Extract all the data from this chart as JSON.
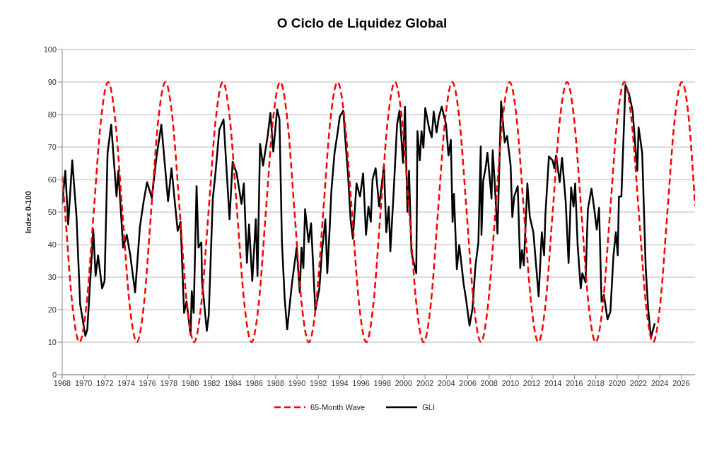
{
  "chart_data": {
    "type": "line",
    "title": "O Ciclo de Liquidez Global",
    "ylabel": "Index 0-100",
    "xlim": [
      1968,
      2027.3
    ],
    "xticks": [
      1968,
      1970,
      1972,
      1974,
      1976,
      1978,
      1980,
      1982,
      1984,
      1986,
      1988,
      1990,
      1992,
      1994,
      1996,
      1998,
      2000,
      2002,
      2004,
      2006,
      2008,
      2010,
      2012,
      2014,
      2016,
      2018,
      2020,
      2022,
      2024,
      2026
    ],
    "ylim": [
      0,
      100
    ],
    "yticks": [
      0,
      10,
      20,
      30,
      40,
      50,
      60,
      70,
      80,
      90,
      100
    ],
    "grid": "y",
    "legend": "bottom",
    "marker": "none",
    "series": [
      {
        "name": "65-Month Wave",
        "color": "#ff0000",
        "line_style": "dashed",
        "x": [
          1968.0,
          1968.27,
          1968.94,
          1969.61,
          1970.28,
          1970.95,
          1971.63,
          1972.3,
          1972.97,
          1973.64,
          1974.31,
          1974.99,
          1975.66,
          1976.33,
          1977.0,
          1977.67,
          1978.35,
          1979.02,
          1979.69,
          1980.36,
          1981.03,
          1981.71,
          1982.38,
          1983.05,
          1983.72,
          1984.39,
          1985.07,
          1985.74,
          1986.41,
          1987.08,
          1987.75,
          1988.43,
          1989.1,
          1989.77,
          1990.44,
          1991.11,
          1991.79,
          1992.46,
          1993.13,
          1993.8,
          1994.47,
          1995.15,
          1995.82,
          1996.49,
          1997.16,
          1997.83,
          1998.51,
          1999.18,
          1999.85,
          2000.52,
          2001.19,
          2001.87,
          2002.54,
          2003.21,
          2003.88,
          2004.55,
          2005.23,
          2005.9,
          2006.57,
          2007.24,
          2007.91,
          2008.59,
          2009.26,
          2009.93,
          2010.6,
          2011.27,
          2011.95,
          2012.62,
          2013.29,
          2013.96,
          2014.63,
          2015.31,
          2015.98,
          2016.65,
          2017.32,
          2017.99,
          2018.67,
          2019.34,
          2020.01,
          2020.68,
          2021.35,
          2022.03,
          2022.7,
          2023.37,
          2024.04,
          2024.71,
          2025.39,
          2026.06,
          2026.73,
          2027.3
        ],
        "values": [
          61,
          50,
          21.7,
          10,
          21.7,
          50,
          78.3,
          90,
          78.3,
          50,
          21.7,
          10,
          21.7,
          50,
          78.3,
          90,
          78.3,
          50,
          21.7,
          10,
          21.7,
          50,
          78.3,
          90,
          78.3,
          50,
          21.7,
          10,
          21.7,
          50,
          78.3,
          90,
          78.3,
          50,
          21.7,
          10,
          21.7,
          50,
          78.3,
          90,
          78.3,
          50,
          21.7,
          10,
          21.7,
          50,
          78.3,
          90,
          78.3,
          50,
          21.7,
          10,
          21.7,
          50,
          78.3,
          90,
          78.3,
          50,
          21.7,
          10,
          21.7,
          50,
          78.3,
          90,
          78.3,
          50,
          21.7,
          10,
          21.7,
          50,
          78.3,
          90,
          78.3,
          50,
          21.7,
          10,
          21.7,
          50,
          78.3,
          90,
          78.3,
          50,
          21.7,
          10,
          21.7,
          50,
          78.3,
          90,
          78.3,
          52
        ]
      },
      {
        "name": "GLI",
        "color": "#000000",
        "line_style": "solid",
        "x": [
          1968.0,
          1968.29,
          1968.56,
          1968.94,
          1969.34,
          1969.68,
          1970.17,
          1970.35,
          1970.91,
          1971.13,
          1971.36,
          1971.74,
          1971.97,
          1972.25,
          1972.59,
          1973.09,
          1973.26,
          1973.71,
          1974.05,
          1974.38,
          1974.83,
          1975.28,
          1975.61,
          1975.95,
          1976.4,
          1976.85,
          1977.29,
          1977.92,
          1978.24,
          1978.82,
          1979.09,
          1979.42,
          1979.65,
          1980.03,
          1980.14,
          1980.32,
          1980.59,
          1980.77,
          1981.04,
          1981.1,
          1981.55,
          1981.73,
          1982.11,
          1982.34,
          1982.72,
          1983.12,
          1983.68,
          1983.97,
          1984.35,
          1984.8,
          1985.02,
          1985.31,
          1985.51,
          1985.81,
          1986.14,
          1986.3,
          1986.54,
          1986.82,
          1987.27,
          1987.51,
          1987.78,
          1988.14,
          1988.36,
          1988.59,
          1988.85,
          1989.08,
          1989.53,
          1989.97,
          1990.26,
          1990.42,
          1990.6,
          1990.76,
          1991.09,
          1991.32,
          1991.72,
          1992.1,
          1992.33,
          1992.66,
          1992.84,
          1993.07,
          1993.22,
          1993.52,
          1993.78,
          1994.01,
          1994.34,
          1994.57,
          1994.79,
          1995.02,
          1995.24,
          1995.58,
          1995.91,
          1996.2,
          1996.47,
          1996.7,
          1996.92,
          1997.08,
          1997.37,
          1997.7,
          1998.04,
          1998.15,
          1998.37,
          1998.6,
          1998.75,
          1999.05,
          1999.38,
          1999.61,
          1999.94,
          2000.12,
          2000.35,
          2000.5,
          2000.73,
          2001.18,
          2001.29,
          2001.51,
          2001.67,
          2001.85,
          2002.02,
          2002.41,
          2002.63,
          2002.81,
          2003.08,
          2003.3,
          2003.57,
          2003.97,
          2004.2,
          2004.42,
          2004.58,
          2004.71,
          2004.98,
          2005.21,
          2005.61,
          2005.84,
          2006.17,
          2006.44,
          2006.73,
          2007.0,
          2007.22,
          2007.29,
          2007.45,
          2007.67,
          2007.85,
          2008.23,
          2008.34,
          2008.52,
          2008.79,
          2009.13,
          2009.47,
          2009.69,
          2010.02,
          2010.18,
          2010.36,
          2010.69,
          2010.92,
          2011.08,
          2011.26,
          2011.59,
          2011.82,
          2012.15,
          2012.65,
          2012.94,
          2013.16,
          2013.28,
          2013.61,
          2013.95,
          2014.12,
          2014.28,
          2014.62,
          2014.84,
          2015.18,
          2015.45,
          2015.69,
          2015.92,
          2016.07,
          2016.3,
          2016.59,
          2016.74,
          2017.04,
          2017.26,
          2017.6,
          2017.86,
          2018.09,
          2018.31,
          2018.54,
          2018.76,
          2019.1,
          2019.37,
          2019.66,
          2019.88,
          2020.06,
          2020.17,
          2020.4,
          2020.78,
          2021.11,
          2021.45,
          2021.74,
          2021.9,
          2022.01,
          2022.35,
          2022.68,
          2022.91,
          2023.17,
          2023.53
        ],
        "values": [
          52.5,
          62.7,
          46.2,
          65.9,
          48.5,
          21.7,
          11.9,
          13.9,
          44.6,
          30.4,
          36.7,
          26.5,
          28.8,
          68.2,
          76.9,
          54.8,
          62.7,
          39.1,
          43,
          36.7,
          25.3,
          45.4,
          52.9,
          59.2,
          54.4,
          67.4,
          76.9,
          53.3,
          63.5,
          44.2,
          47,
          19,
          22.5,
          12.3,
          25.7,
          19,
          58,
          39.1,
          40.7,
          28.8,
          13.5,
          18.2,
          54.1,
          61.2,
          75.3,
          78.5,
          47.8,
          65.5,
          61.9,
          52.5,
          58.8,
          34.4,
          46.2,
          28.8,
          47.8,
          30.4,
          71,
          64.3,
          73.8,
          80.5,
          68.6,
          81.6,
          78.5,
          40.7,
          23.3,
          13.9,
          28.1,
          39.1,
          25.3,
          39.1,
          32.8,
          50.9,
          40.7,
          46.6,
          19.8,
          26.5,
          37.5,
          47.8,
          31.2,
          45.4,
          56.4,
          68.2,
          73.8,
          79.3,
          81.2,
          70.6,
          61.2,
          47.8,
          41.8,
          58.8,
          54.8,
          61.9,
          43,
          51.7,
          47,
          60,
          63.5,
          51.7,
          61.2,
          64.3,
          43.8,
          51.7,
          37.9,
          55.6,
          76.9,
          81.2,
          65.1,
          82.4,
          50.1,
          62.7,
          37.5,
          31.2,
          74.9,
          65.9,
          74.9,
          69.8,
          82,
          75.3,
          73,
          80.9,
          74.5,
          79.3,
          82.4,
          76.9,
          67.4,
          72.2,
          47,
          55.6,
          32.4,
          39.9,
          28.1,
          23.3,
          15.1,
          20.2,
          33.6,
          40.7,
          70.2,
          43,
          59.6,
          63.5,
          68.2,
          54.1,
          69,
          59.6,
          43.4,
          84,
          71.4,
          73.4,
          64.3,
          48.5,
          54.8,
          58,
          32.8,
          38.3,
          33.6,
          58.8,
          48.5,
          43.8,
          24.1,
          43.8,
          36.7,
          49.3,
          67.1,
          65.9,
          63.5,
          67.4,
          59.2,
          66.7,
          53.3,
          34.4,
          57.6,
          51.7,
          58.8,
          39.9,
          26.5,
          31.2,
          28.4,
          50.9,
          57.2,
          50.9,
          44.6,
          51.3,
          22.5,
          24.5,
          17,
          19.4,
          36.7,
          43.8,
          36.7,
          54.8,
          54.8,
          89.1,
          86.4,
          81.2,
          69,
          62.7,
          76.1,
          68.2,
          32.8,
          20.2,
          11.5,
          15.8
        ]
      }
    ]
  }
}
